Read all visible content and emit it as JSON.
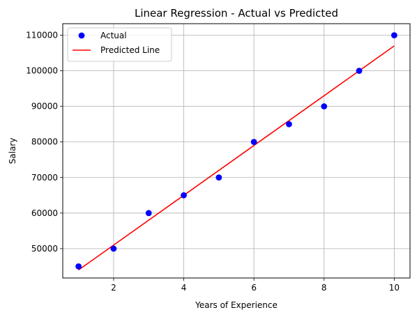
{
  "chart_data": {
    "type": "scatter",
    "title": "Linear Regression - Actual vs Predicted",
    "xlabel": "Years of Experience",
    "ylabel": "Salary",
    "xlim": [
      0.55,
      10.45
    ],
    "ylim": [
      41750,
      113250
    ],
    "x_ticks": [
      2,
      4,
      6,
      8,
      10
    ],
    "y_ticks": [
      50000,
      60000,
      70000,
      80000,
      90000,
      100000,
      110000
    ],
    "grid": true,
    "legend_position": "top-left",
    "series": [
      {
        "name": "Actual",
        "kind": "scatter",
        "color": "#0000ff",
        "x": [
          1,
          2,
          3,
          4,
          5,
          6,
          7,
          8,
          9,
          10
        ],
        "y": [
          45000,
          50000,
          60000,
          65000,
          70000,
          80000,
          85000,
          90000,
          100000,
          110000
        ]
      },
      {
        "name": "Predicted Line",
        "kind": "line",
        "color": "#ff0000",
        "x": [
          1,
          10
        ],
        "y": [
          44000,
          107000
        ]
      }
    ]
  }
}
